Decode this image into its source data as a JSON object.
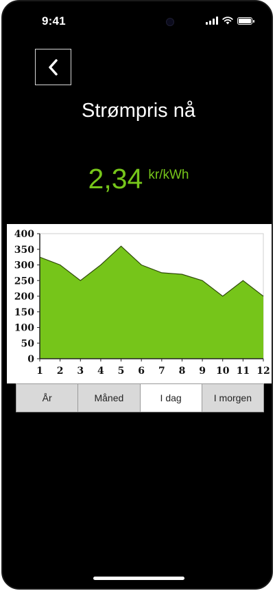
{
  "status_bar": {
    "time": "9:41"
  },
  "header": {
    "title": "Strømpris nå"
  },
  "price": {
    "value": "2,34",
    "unit": "kr/kWh",
    "color": "#76c51a"
  },
  "tabs": [
    {
      "label": "År",
      "active": false
    },
    {
      "label": "Måned",
      "active": false
    },
    {
      "label": "I dag",
      "active": true
    },
    {
      "label": "I morgen",
      "active": false
    }
  ],
  "chart_data": {
    "type": "area",
    "x": [
      1,
      2,
      3,
      4,
      5,
      6,
      7,
      8,
      9,
      10,
      11,
      12
    ],
    "values": [
      325,
      300,
      250,
      300,
      360,
      300,
      275,
      270,
      250,
      200,
      250,
      200
    ],
    "ylim": [
      0,
      400
    ],
    "yticks": [
      0,
      50,
      100,
      150,
      200,
      250,
      300,
      350,
      400
    ],
    "grid": false,
    "fill_color": "#76c51a",
    "title": "",
    "xlabel": "",
    "ylabel": ""
  }
}
